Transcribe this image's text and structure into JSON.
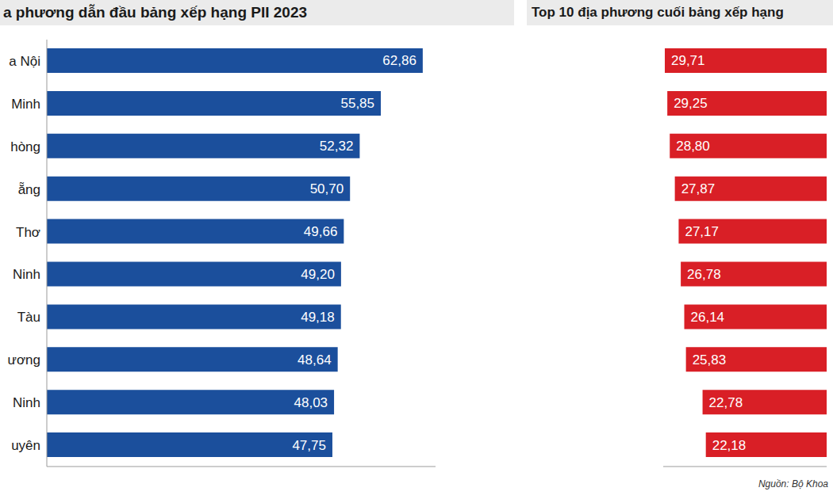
{
  "chart_data": [
    {
      "type": "bar",
      "orientation": "horizontal",
      "title": "a phương dẫn đầu bảng xếp hạng PII 2023",
      "categories": [
        "a Nội",
        "Minh",
        "hòng",
        "ẵng",
        "Thơ",
        "Ninh",
        "Tàu",
        "ương",
        "Ninh",
        "uyên"
      ],
      "values": [
        62.86,
        55.85,
        52.32,
        50.7,
        49.66,
        49.2,
        49.18,
        48.64,
        48.03,
        47.75
      ],
      "value_labels": [
        "62,86",
        "55,85",
        "52,32",
        "50,70",
        "49,66",
        "49,20",
        "49,18",
        "48,64",
        "48,03",
        "47,75"
      ],
      "color": "#1b4f9c",
      "xlim": [
        0,
        65
      ],
      "xticks": [],
      "data_labels": true,
      "tick_labels": "y"
    },
    {
      "type": "bar",
      "orientation": "horizontal",
      "title": "Top 10 địa phương cuối bảng xếp hạng",
      "categories": [
        null,
        null,
        null,
        null,
        null,
        null,
        null,
        null,
        null,
        null
      ],
      "values": [
        29.71,
        29.25,
        28.8,
        27.87,
        27.17,
        26.78,
        26.14,
        25.83,
        22.78,
        22.18
      ],
      "value_labels": [
        "29,71",
        "29,25",
        "28,80",
        "27,87",
        "27,17",
        "26,78",
        "26,14",
        "25,83",
        "22,78",
        "22,18"
      ],
      "color": "#d91f26",
      "xlim": [
        0,
        30
      ],
      "xticks": [],
      "data_labels": true,
      "tick_labels": false,
      "annotation": "Nguồn: Bộ Khoa"
    }
  ]
}
